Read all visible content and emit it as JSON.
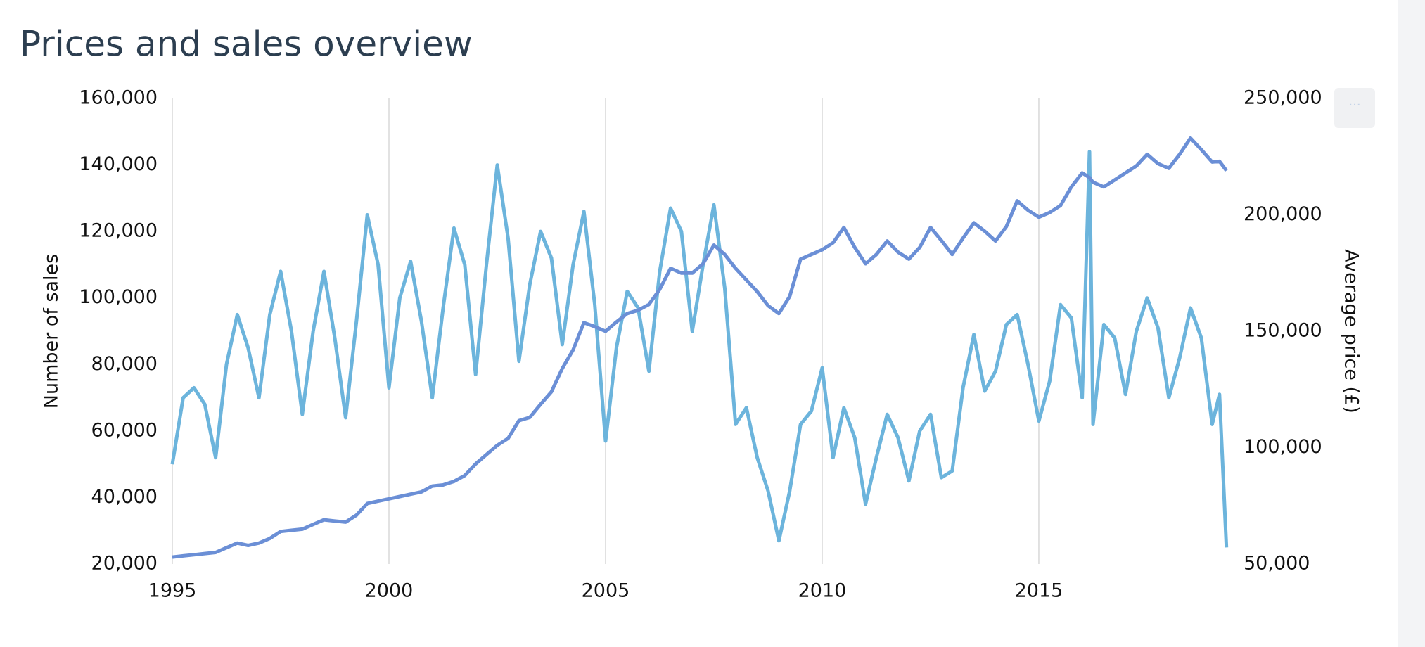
{
  "chart_data": {
    "type": "line",
    "title": "Prices and sales overview",
    "y_label": "Number of sales",
    "y2_label": "Average price (£)",
    "x": [
      1995,
      1995.25,
      1995.5,
      1995.75,
      1996,
      1996.25,
      1996.5,
      1996.75,
      1997,
      1997.25,
      1997.5,
      1997.75,
      1998,
      1998.25,
      1998.5,
      1998.75,
      1999,
      1999.25,
      1999.5,
      1999.75,
      2000,
      2000.25,
      2000.5,
      2000.75,
      2001,
      2001.25,
      2001.5,
      2001.75,
      2002,
      2002.25,
      2002.5,
      2002.75,
      2003,
      2003.25,
      2003.5,
      2003.75,
      2004,
      2004.25,
      2004.5,
      2004.75,
      2005,
      2005.25,
      2005.5,
      2005.75,
      2006,
      2006.25,
      2006.5,
      2006.75,
      2007,
      2007.25,
      2007.5,
      2007.75,
      2008,
      2008.25,
      2008.5,
      2008.75,
      2009,
      2009.25,
      2009.5,
      2009.75,
      2010,
      2010.25,
      2010.5,
      2010.75,
      2011,
      2011.25,
      2011.5,
      2011.75,
      2012,
      2012.25,
      2012.5,
      2012.75,
      2013,
      2013.25,
      2013.5,
      2013.75,
      2014,
      2014.25,
      2014.5,
      2014.75,
      2015,
      2015.25,
      2015.5,
      2015.75,
      2016,
      2016.17,
      2016.25,
      2016.5,
      2016.75,
      2017,
      2017.25,
      2017.5,
      2017.75,
      2018,
      2018.25,
      2018.5,
      2018.75,
      2019,
      2019.17,
      2019.33
    ],
    "series": [
      {
        "color": "#6cb4dc",
        "values": [
          50000,
          70000,
          73000,
          68000,
          52000,
          80000,
          95000,
          85000,
          70000,
          95000,
          108000,
          90000,
          65000,
          90000,
          108000,
          88000,
          64000,
          93000,
          125000,
          110000,
          73000,
          100000,
          111000,
          93000,
          70000,
          97000,
          121000,
          110000,
          77000,
          110000,
          140000,
          118000,
          81000,
          104000,
          120000,
          112000,
          86000,
          110000,
          126000,
          98000,
          57000,
          85000,
          102000,
          97000,
          78000,
          108000,
          127000,
          120000,
          90000,
          110000,
          128000,
          103000,
          62000,
          67000,
          52000,
          42000,
          27000,
          42000,
          62000,
          66000,
          79000,
          52000,
          67000,
          58000,
          38000,
          52000,
          65000,
          58000,
          45000,
          60000,
          65000,
          46000,
          48000,
          73000,
          89000,
          72000,
          78000,
          92000,
          95000,
          80000,
          63000,
          75000,
          98000,
          94000,
          70000,
          144000,
          62000,
          92000,
          88000,
          71000,
          90000,
          100000,
          91000,
          70000,
          82000,
          97000,
          88000,
          62000,
          71000,
          25000
        ]
      },
      {
        "color": "#6b8fd6",
        "axis": "y2",
        "values": [
          53000,
          53500,
          54000,
          54500,
          55000,
          57000,
          59000,
          58000,
          59000,
          61000,
          64000,
          64500,
          65000,
          67000,
          69000,
          68500,
          68000,
          71000,
          76000,
          77000,
          78000,
          79000,
          80000,
          81000,
          83500,
          84000,
          85500,
          88000,
          93000,
          97000,
          101000,
          104000,
          111600,
          113000,
          118600,
          124000,
          134000,
          142000,
          153700,
          152000,
          150000,
          154000,
          157600,
          159000,
          161500,
          168000,
          177000,
          175000,
          175000,
          179000,
          187000,
          183000,
          177000,
          172000,
          167000,
          161000,
          157600,
          165000,
          181000,
          183000,
          185000,
          188000,
          194600,
          186000,
          179000,
          183000,
          188800,
          184000,
          181000,
          186000,
          194600,
          189000,
          183000,
          190000,
          196600,
          193000,
          188800,
          195000,
          206000,
          202000,
          199000,
          201000,
          204000,
          212000,
          218000,
          216000,
          214000,
          212000,
          215000,
          218000,
          221000,
          226000,
          222000,
          220000,
          226000,
          233000,
          228000,
          222700,
          223000,
          219000
        ]
      }
    ],
    "xlim": [
      1995,
      2019.4
    ],
    "xticks": [
      1995,
      2000,
      2005,
      2010,
      2015
    ],
    "ylim": [
      20000,
      160000
    ],
    "yticks": [
      {
        "value": 20000,
        "label": "20,000"
      },
      {
        "value": 40000,
        "label": "40,000"
      },
      {
        "value": 60000,
        "label": "60,000"
      },
      {
        "value": 80000,
        "label": "80,000"
      },
      {
        "value": 100000,
        "label": "100,000"
      },
      {
        "value": 120000,
        "label": "120,000"
      },
      {
        "value": 140000,
        "label": "140,000"
      },
      {
        "value": 160000,
        "label": "160,000"
      }
    ],
    "y2lim": [
      50000,
      250000
    ],
    "y2ticks": [
      {
        "value": 50000,
        "label": "50,000"
      },
      {
        "value": 100000,
        "label": "100,000"
      },
      {
        "value": 150000,
        "label": "150,000"
      },
      {
        "value": 200000,
        "label": "200,000"
      },
      {
        "value": 250000,
        "label": "250,000"
      }
    ],
    "grid": "x"
  }
}
